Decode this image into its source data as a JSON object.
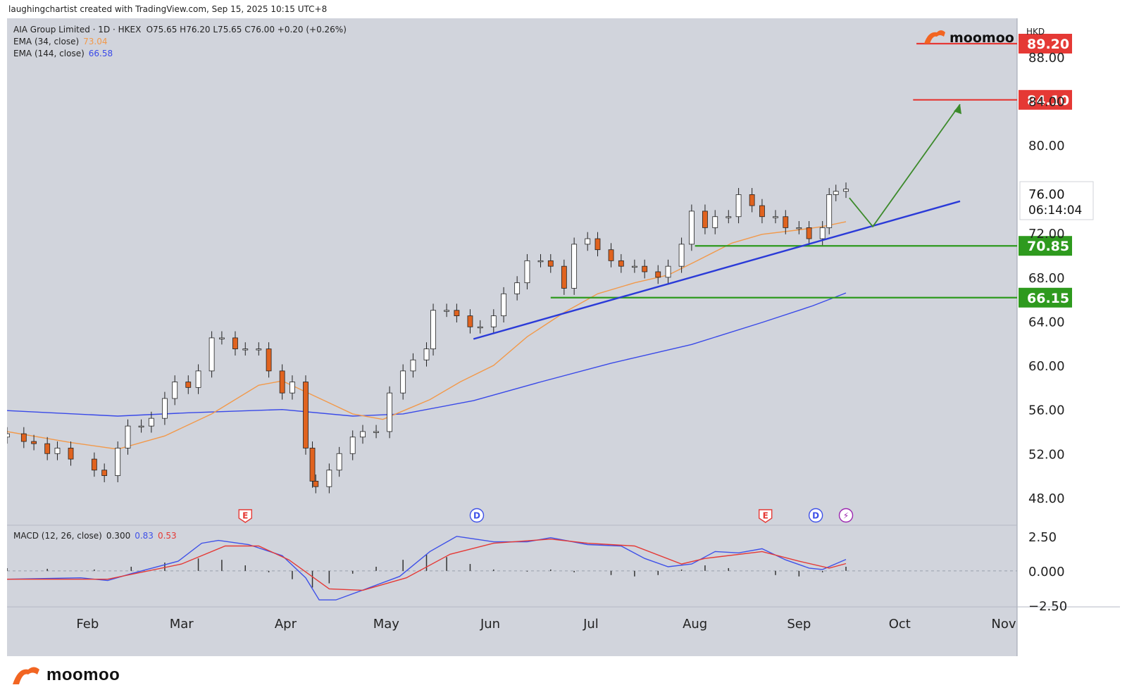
{
  "header": {
    "credit": "laughingchartist created with TradingView.com, Sep 15, 2025 10:15 UTC+8",
    "legend_title": "AIA Group Limited · 1D · HKEX",
    "ohlc": "O75.65  H76.20  L75.65  C76.00  +0.20 (+0.26%)",
    "ema34_label": "EMA (34, close)",
    "ema34_value": "73.04",
    "ema144_label": "EMA (144, close)",
    "ema144_value": "66.58",
    "macd_label": "MACD (12, 26, close)",
    "macd_values": [
      "0.300",
      "0.83",
      "0.53"
    ]
  },
  "branding": {
    "logo_text": "moomoo",
    "bottom_logo_text": "moomoo"
  },
  "colors": {
    "background": "#d1d4dc",
    "up_candle": "#ffffff",
    "down_candle": "#e0631f",
    "ema34": "#f2994a",
    "ema144": "#3949e8",
    "trendline": "#2a3ad8",
    "resistance": "#e53935",
    "support": "#2e9a1e",
    "arrow": "#3c8a2b",
    "macd_line": "#3f51e8",
    "signal_line": "#e53935"
  },
  "chart_data": {
    "type": "candlestick",
    "currency": "HKD",
    "last_price": "76.00",
    "countdown": "06:14:04",
    "y_ticks": [
      "88.00",
      "84.00",
      "80.00",
      "76.00",
      "72.00",
      "68.00",
      "64.00",
      "60.00",
      "56.00",
      "52.00",
      "48.00"
    ],
    "y_tick_values": [
      88,
      84,
      80,
      76,
      72,
      68,
      64,
      60,
      56,
      52,
      48
    ],
    "y_range": [
      45.5,
      91.5
    ],
    "x_labels": [
      "Feb",
      "Mar",
      "Apr",
      "May",
      "Jun",
      "Jul",
      "Aug",
      "Sep",
      "Oct",
      "Nov"
    ],
    "x_label_dates": [
      "2025-02-01",
      "2025-03-01",
      "2025-04-01",
      "2025-05-01",
      "2025-06-01",
      "2025-07-01",
      "2025-08-01",
      "2025-09-01",
      "2025-10-01",
      "2025-11-01"
    ],
    "date_range": [
      "2025-01-08",
      "2025-11-05"
    ],
    "close_series": [
      [
        "2025-01-08",
        53.8
      ],
      [
        "2025-01-13",
        53.1
      ],
      [
        "2025-01-16",
        52.9
      ],
      [
        "2025-01-20",
        52.0
      ],
      [
        "2025-01-23",
        52.5
      ],
      [
        "2025-01-27",
        51.5
      ],
      [
        "2025-02-03",
        50.5
      ],
      [
        "2025-02-06",
        50.0
      ],
      [
        "2025-02-10",
        52.5
      ],
      [
        "2025-02-13",
        54.5
      ],
      [
        "2025-02-17",
        54.5
      ],
      [
        "2025-02-20",
        55.2
      ],
      [
        "2025-02-24",
        57.0
      ],
      [
        "2025-02-27",
        58.5
      ],
      [
        "2025-03-03",
        58.0
      ],
      [
        "2025-03-06",
        59.5
      ],
      [
        "2025-03-10",
        62.5
      ],
      [
        "2025-03-13",
        62.5
      ],
      [
        "2025-03-17",
        61.5
      ],
      [
        "2025-03-20",
        61.5
      ],
      [
        "2025-03-24",
        61.5
      ],
      [
        "2025-03-27",
        59.5
      ],
      [
        "2025-03-31",
        57.5
      ],
      [
        "2025-04-03",
        58.5
      ],
      [
        "2025-04-07",
        52.5
      ],
      [
        "2025-04-09",
        49.5
      ],
      [
        "2025-04-10",
        49.0
      ],
      [
        "2025-04-14",
        50.5
      ],
      [
        "2025-04-17",
        52.0
      ],
      [
        "2025-04-21",
        53.5
      ],
      [
        "2025-04-24",
        54.0
      ],
      [
        "2025-04-28",
        54.0
      ],
      [
        "2025-05-02",
        57.5
      ],
      [
        "2025-05-06",
        59.5
      ],
      [
        "2025-05-09",
        60.5
      ],
      [
        "2025-05-13",
        61.5
      ],
      [
        "2025-05-15",
        65.0
      ],
      [
        "2025-05-19",
        65.0
      ],
      [
        "2025-05-22",
        64.5
      ],
      [
        "2025-05-26",
        63.5
      ],
      [
        "2025-05-29",
        63.5
      ],
      [
        "2025-06-02",
        64.5
      ],
      [
        "2025-06-05",
        66.5
      ],
      [
        "2025-06-09",
        67.5
      ],
      [
        "2025-06-12",
        69.5
      ],
      [
        "2025-06-16",
        69.5
      ],
      [
        "2025-06-19",
        69.0
      ],
      [
        "2025-06-23",
        67.0
      ],
      [
        "2025-06-26",
        71.0
      ],
      [
        "2025-06-30",
        71.5
      ],
      [
        "2025-07-03",
        70.5
      ],
      [
        "2025-07-07",
        69.5
      ],
      [
        "2025-07-10",
        69.0
      ],
      [
        "2025-07-14",
        69.0
      ],
      [
        "2025-07-17",
        68.5
      ],
      [
        "2025-07-21",
        68.0
      ],
      [
        "2025-07-24",
        69.0
      ],
      [
        "2025-07-28",
        71.0
      ],
      [
        "2025-07-31",
        74.0
      ],
      [
        "2025-08-04",
        72.5
      ],
      [
        "2025-08-07",
        73.5
      ],
      [
        "2025-08-11",
        73.5
      ],
      [
        "2025-08-14",
        75.5
      ],
      [
        "2025-08-18",
        74.5
      ],
      [
        "2025-08-21",
        73.5
      ],
      [
        "2025-08-25",
        73.5
      ],
      [
        "2025-08-28",
        72.5
      ],
      [
        "2025-09-01",
        72.5
      ],
      [
        "2025-09-04",
        71.5
      ],
      [
        "2025-09-08",
        72.5
      ],
      [
        "2025-09-10",
        75.5
      ],
      [
        "2025-09-12",
        75.8
      ],
      [
        "2025-09-15",
        76.0
      ]
    ],
    "ema34_series": [
      [
        "2025-01-08",
        54.0
      ],
      [
        "2025-01-27",
        53.0
      ],
      [
        "2025-02-10",
        52.4
      ],
      [
        "2025-02-24",
        53.6
      ],
      [
        "2025-03-10",
        55.6
      ],
      [
        "2025-03-24",
        58.2
      ],
      [
        "2025-03-31",
        58.6
      ],
      [
        "2025-04-07",
        57.6
      ],
      [
        "2025-04-14",
        56.6
      ],
      [
        "2025-04-21",
        55.6
      ],
      [
        "2025-04-30",
        55.1
      ],
      [
        "2025-05-07",
        56.0
      ],
      [
        "2025-05-14",
        56.9
      ],
      [
        "2025-05-23",
        58.5
      ],
      [
        "2025-06-02",
        60.0
      ],
      [
        "2025-06-12",
        62.6
      ],
      [
        "2025-06-23",
        64.8
      ],
      [
        "2025-07-03",
        66.5
      ],
      [
        "2025-07-14",
        67.5
      ],
      [
        "2025-07-24",
        68.2
      ],
      [
        "2025-08-01",
        69.4
      ],
      [
        "2025-08-12",
        71.1
      ],
      [
        "2025-08-21",
        71.9
      ],
      [
        "2025-09-01",
        72.3
      ],
      [
        "2025-09-08",
        72.6
      ],
      [
        "2025-09-15",
        73.04
      ]
    ],
    "ema144_series": [
      [
        "2025-01-08",
        55.9
      ],
      [
        "2025-02-10",
        55.4
      ],
      [
        "2025-03-03",
        55.7
      ],
      [
        "2025-03-31",
        56.0
      ],
      [
        "2025-04-21",
        55.4
      ],
      [
        "2025-05-06",
        55.6
      ],
      [
        "2025-05-27",
        56.8
      ],
      [
        "2025-06-16",
        58.5
      ],
      [
        "2025-07-07",
        60.2
      ],
      [
        "2025-07-31",
        61.9
      ],
      [
        "2025-08-21",
        63.9
      ],
      [
        "2025-09-05",
        65.4
      ],
      [
        "2025-09-15",
        66.58
      ]
    ],
    "levels": [
      {
        "label": "89.20",
        "value": 89.2,
        "color": "resistance",
        "from": "2025-10-06"
      },
      {
        "label": "84.10",
        "value": 84.1,
        "color": "resistance",
        "from": "2025-10-05"
      },
      {
        "label": "70.85",
        "value": 70.85,
        "color": "support",
        "from": "2025-08-01"
      },
      {
        "label": "66.15",
        "value": 66.15,
        "color": "support",
        "from": "2025-06-19"
      }
    ],
    "trendline": [
      [
        "2025-05-27",
        62.4
      ],
      [
        "2025-10-19",
        74.9
      ]
    ],
    "projection_arrow": [
      [
        "2025-09-16",
        75.2
      ],
      [
        "2025-09-23",
        72.6
      ],
      [
        "2025-10-19",
        83.7
      ]
    ],
    "event_markers": [
      {
        "label": "E",
        "date": "2025-03-20",
        "color": "#e53935",
        "shape": "square"
      },
      {
        "label": "D",
        "date": "2025-05-28",
        "color": "#3f51e8",
        "shape": "circle"
      },
      {
        "label": "E",
        "date": "2025-08-22",
        "color": "#e53935",
        "shape": "square"
      },
      {
        "label": "D",
        "date": "2025-09-06",
        "color": "#3f51e8",
        "shape": "circle"
      },
      {
        "label": "⚡",
        "date": "2025-09-15",
        "color": "#9c27b0",
        "shape": "circle"
      }
    ],
    "macd": {
      "y_ticks": [
        "2.50",
        "0.000",
        "−2.50"
      ],
      "y_tick_values": [
        2.5,
        0,
        -2.5
      ],
      "y_range": [
        -2.5,
        3.2
      ],
      "macd_series": [
        [
          "2025-01-08",
          -0.6
        ],
        [
          "2025-01-30",
          -0.5
        ],
        [
          "2025-02-07",
          -0.7
        ],
        [
          "2025-02-14",
          -0.2
        ],
        [
          "2025-02-28",
          0.7
        ],
        [
          "2025-03-07",
          2.0
        ],
        [
          "2025-03-12",
          2.2
        ],
        [
          "2025-03-21",
          1.9
        ],
        [
          "2025-03-31",
          1.1
        ],
        [
          "2025-04-07",
          -0.5
        ],
        [
          "2025-04-11",
          -2.1
        ],
        [
          "2025-04-16",
          -2.1
        ],
        [
          "2025-04-25",
          -1.3
        ],
        [
          "2025-05-05",
          -0.4
        ],
        [
          "2025-05-14",
          1.4
        ],
        [
          "2025-05-22",
          2.5
        ],
        [
          "2025-06-02",
          2.1
        ],
        [
          "2025-06-12",
          2.1
        ],
        [
          "2025-06-19",
          2.4
        ],
        [
          "2025-06-30",
          1.9
        ],
        [
          "2025-07-10",
          1.8
        ],
        [
          "2025-07-17",
          0.9
        ],
        [
          "2025-07-24",
          0.3
        ],
        [
          "2025-07-31",
          0.5
        ],
        [
          "2025-08-07",
          1.4
        ],
        [
          "2025-08-14",
          1.3
        ],
        [
          "2025-08-21",
          1.6
        ],
        [
          "2025-08-28",
          0.8
        ],
        [
          "2025-09-04",
          0.2
        ],
        [
          "2025-09-08",
          0.1
        ],
        [
          "2025-09-15",
          0.83
        ]
      ],
      "signal_series": [
        [
          "2025-01-08",
          -0.6
        ],
        [
          "2025-02-07",
          -0.6
        ],
        [
          "2025-03-01",
          0.5
        ],
        [
          "2025-03-14",
          1.8
        ],
        [
          "2025-03-24",
          1.8
        ],
        [
          "2025-04-02",
          0.8
        ],
        [
          "2025-04-14",
          -1.3
        ],
        [
          "2025-04-24",
          -1.4
        ],
        [
          "2025-05-07",
          -0.5
        ],
        [
          "2025-05-20",
          1.2
        ],
        [
          "2025-06-02",
          2.0
        ],
        [
          "2025-06-19",
          2.3
        ],
        [
          "2025-06-30",
          2.0
        ],
        [
          "2025-07-14",
          1.8
        ],
        [
          "2025-07-28",
          0.5
        ],
        [
          "2025-08-04",
          0.9
        ],
        [
          "2025-08-21",
          1.4
        ],
        [
          "2025-09-01",
          0.7
        ],
        [
          "2025-09-10",
          0.2
        ],
        [
          "2025-09-15",
          0.53
        ]
      ],
      "histogram": [
        [
          "2025-01-08",
          0.2
        ],
        [
          "2025-01-20",
          0.15
        ],
        [
          "2025-02-03",
          0.1
        ],
        [
          "2025-02-14",
          0.3
        ],
        [
          "2025-02-24",
          0.6
        ],
        [
          "2025-03-06",
          0.9
        ],
        [
          "2025-03-13",
          0.8
        ],
        [
          "2025-03-20",
          0.4
        ],
        [
          "2025-03-27",
          -0.1
        ],
        [
          "2025-04-03",
          -0.6
        ],
        [
          "2025-04-09",
          -1.2
        ],
        [
          "2025-04-14",
          -0.9
        ],
        [
          "2025-04-21",
          -0.2
        ],
        [
          "2025-04-28",
          0.3
        ],
        [
          "2025-05-06",
          0.8
        ],
        [
          "2025-05-13",
          1.2
        ],
        [
          "2025-05-19",
          1.0
        ],
        [
          "2025-05-26",
          0.5
        ],
        [
          "2025-06-02",
          0.1
        ],
        [
          "2025-06-12",
          -0.05
        ],
        [
          "2025-06-19",
          0.1
        ],
        [
          "2025-06-26",
          -0.1
        ],
        [
          "2025-07-07",
          -0.3
        ],
        [
          "2025-07-14",
          -0.4
        ],
        [
          "2025-07-21",
          -0.3
        ],
        [
          "2025-07-28",
          0.1
        ],
        [
          "2025-08-04",
          0.4
        ],
        [
          "2025-08-11",
          0.2
        ],
        [
          "2025-08-18",
          0.0
        ],
        [
          "2025-08-25",
          -0.3
        ],
        [
          "2025-09-01",
          -0.4
        ],
        [
          "2025-09-08",
          -0.1
        ],
        [
          "2025-09-15",
          0.3
        ]
      ]
    }
  }
}
